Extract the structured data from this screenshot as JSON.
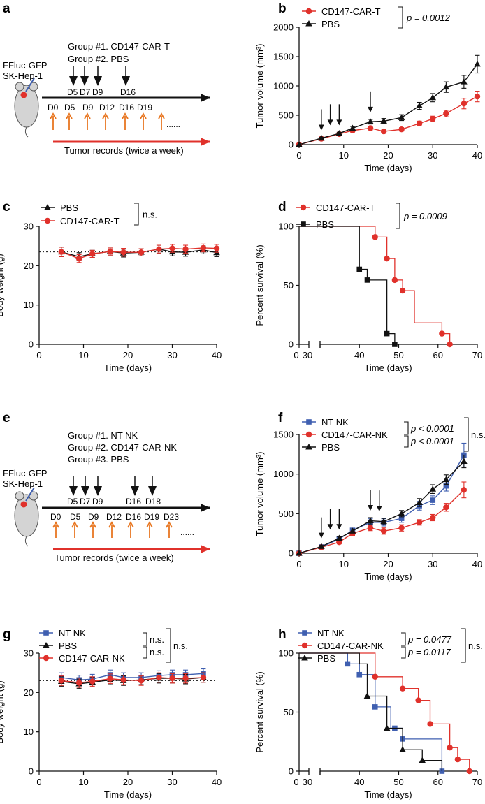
{
  "colors": {
    "red": "#e0312b",
    "black": "#111111",
    "blue": "#3f5fb0",
    "orange": "#e87722",
    "mouse": "#d4d4d4"
  },
  "panel_a": {
    "letter": "a",
    "group1": "Group #1. CD147-CAR-T",
    "group2": "Group #2. PBS",
    "cells_line1": "FFluc-GFP",
    "cells_line2": "SK-Hep-1",
    "injection_labels": [
      "D5",
      "D7",
      "D9",
      "D16"
    ],
    "day_labels": [
      "D0",
      "D5",
      "D9",
      "D12",
      "D16",
      "D19"
    ],
    "ellipsis": "......",
    "records_label": "Tumor records (twice a week)"
  },
  "panel_e": {
    "letter": "e",
    "group1": "Group #1. NT NK",
    "group2": "Group #2. CD147-CAR-NK",
    "group3": "Group #3. PBS",
    "cells_line1": "FFluc-GFP",
    "cells_line2": "SK-Hep-1",
    "injection_labels": [
      "D5",
      "D7",
      "D9",
      "D16",
      "D18"
    ],
    "day_labels": [
      "D0",
      "D5",
      "D9",
      "D12",
      "D16",
      "D19",
      "D23"
    ],
    "ellipsis": "......",
    "records_label": "Tumor records (twice a week)"
  },
  "chart_data": [
    {
      "id": "b",
      "type": "line",
      "panel_letter": "b",
      "xlabel": "Time (days)",
      "ylabel": "Tumor volume (mm³)",
      "xlim": [
        0,
        40
      ],
      "ylim": [
        0,
        2000
      ],
      "xticks": [
        0,
        10,
        20,
        30,
        40
      ],
      "yticks": [
        0,
        500,
        1000,
        1500,
        2000
      ],
      "series": [
        {
          "name": "CD147-CAR-T",
          "color": "#e0312b",
          "marker": "circle",
          "x": [
            0,
            5,
            9,
            12,
            16,
            19,
            23,
            27,
            30,
            33,
            37,
            40
          ],
          "y": [
            0,
            100,
            180,
            240,
            280,
            225,
            260,
            360,
            440,
            530,
            700,
            820
          ],
          "err": [
            0,
            15,
            20,
            25,
            30,
            25,
            30,
            40,
            45,
            55,
            90,
            90
          ]
        },
        {
          "name": "PBS",
          "color": "#111111",
          "marker": "triangle",
          "x": [
            0,
            5,
            9,
            12,
            16,
            19,
            23,
            27,
            30,
            33,
            37,
            40
          ],
          "y": [
            0,
            110,
            190,
            280,
            390,
            400,
            460,
            660,
            800,
            980,
            1070,
            1370
          ],
          "err": [
            0,
            15,
            20,
            30,
            40,
            45,
            50,
            60,
            70,
            90,
            110,
            150
          ]
        }
      ],
      "injection_days": [
        5,
        7,
        9,
        16
      ],
      "stat": {
        "text": "p = 0.0012"
      }
    },
    {
      "id": "c",
      "type": "line",
      "panel_letter": "c",
      "xlabel": "Time (days)",
      "ylabel": "Body weight (g)",
      "xlim": [
        0,
        40
      ],
      "ylim": [
        0,
        30
      ],
      "xticks": [
        0,
        10,
        20,
        30,
        40
      ],
      "yticks": [
        0,
        10,
        20,
        30
      ],
      "baseline": 23.5,
      "series": [
        {
          "name": "PBS",
          "color": "#111111",
          "marker": "triangle",
          "x": [
            5,
            9,
            12,
            16,
            19,
            23,
            27,
            30,
            33,
            37,
            40
          ],
          "y": [
            23.5,
            22.3,
            23.0,
            23.6,
            23.2,
            23.4,
            24.2,
            23.5,
            23.4,
            24.0,
            23.3
          ],
          "err": [
            1.2,
            1.0,
            0.9,
            0.9,
            1.0,
            0.9,
            1.0,
            1.0,
            1.0,
            1.0,
            1.0
          ]
        },
        {
          "name": "CD147-CAR-T",
          "color": "#e0312b",
          "marker": "circle",
          "x": [
            5,
            9,
            12,
            16,
            19,
            23,
            27,
            30,
            33,
            37,
            40
          ],
          "y": [
            23.5,
            21.8,
            23.0,
            23.6,
            23.4,
            23.4,
            24.2,
            24.4,
            24.2,
            24.5,
            24.4
          ],
          "err": [
            1.2,
            1.0,
            0.9,
            0.9,
            1.0,
            0.9,
            1.0,
            1.0,
            1.0,
            1.0,
            1.0
          ]
        }
      ],
      "stat": {
        "text": "n.s."
      }
    },
    {
      "id": "d",
      "type": "line",
      "panel_letter": "d",
      "survival": true,
      "xlabel": "Time (days)",
      "ylabel": "Percent survival (%)",
      "xlim": [
        0,
        70
      ],
      "ylim": [
        0,
        100
      ],
      "xticks": [
        0,
        30,
        40,
        50,
        60,
        70
      ],
      "yticks": [
        0,
        50,
        100
      ],
      "series": [
        {
          "name": "CD147-CAR-T",
          "color": "#e0312b",
          "marker": "circle",
          "steps": [
            [
              0,
              100
            ],
            [
              44,
              90.9
            ],
            [
              47,
              72.7
            ],
            [
              49,
              54.5
            ],
            [
              51,
              45.5
            ],
            [
              54,
              18.2
            ],
            [
              61,
              9.1
            ],
            [
              63,
              0
            ]
          ],
          "marks": [
            [
              44,
              90.9
            ],
            [
              47,
              72.7
            ],
            [
              49,
              54.5
            ],
            [
              51,
              45.5
            ],
            [
              61,
              9.1
            ],
            [
              63,
              0
            ]
          ]
        },
        {
          "name": "PBS",
          "color": "#111111",
          "marker": "square",
          "steps": [
            [
              0,
              100
            ],
            [
              40,
              63.6
            ],
            [
              42,
              54.5
            ],
            [
              47,
              9.1
            ],
            [
              49,
              0
            ]
          ],
          "marks": [
            [
              40,
              63.6
            ],
            [
              42,
              54.5
            ],
            [
              47,
              9.1
            ],
            [
              49,
              0
            ]
          ]
        }
      ],
      "stat": {
        "text": "p = 0.0009"
      }
    },
    {
      "id": "f",
      "type": "line",
      "panel_letter": "f",
      "xlabel": "Time (days)",
      "ylabel": "Tumor volume (mm³)",
      "xlim": [
        0,
        40
      ],
      "ylim": [
        0,
        1500
      ],
      "xticks": [
        0,
        10,
        20,
        30,
        40
      ],
      "yticks": [
        0,
        500,
        1000,
        1500
      ],
      "series": [
        {
          "name": "NT NK",
          "color": "#3f5fb0",
          "marker": "square",
          "x": [
            0,
            5,
            9,
            12,
            16,
            19,
            23,
            27,
            30,
            33,
            37
          ],
          "y": [
            0,
            80,
            180,
            290,
            390,
            390,
            440,
            600,
            670,
            850,
            1240
          ],
          "err": [
            0,
            15,
            20,
            25,
            45,
            45,
            50,
            55,
            55,
            65,
            150
          ]
        },
        {
          "name": "CD147-CAR-NK",
          "color": "#e0312b",
          "marker": "circle",
          "x": [
            0,
            5,
            9,
            12,
            16,
            19,
            23,
            27,
            30,
            33,
            37
          ],
          "y": [
            0,
            75,
            140,
            250,
            320,
            280,
            320,
            390,
            450,
            580,
            800
          ],
          "err": [
            0,
            15,
            20,
            25,
            35,
            40,
            40,
            35,
            40,
            50,
            100
          ]
        },
        {
          "name": "PBS",
          "color": "#111111",
          "marker": "triangle",
          "x": [
            0,
            5,
            9,
            12,
            16,
            19,
            23,
            27,
            30,
            33,
            37
          ],
          "y": [
            0,
            85,
            190,
            280,
            410,
            400,
            500,
            640,
            810,
            930,
            1160
          ],
          "err": [
            0,
            15,
            20,
            25,
            40,
            40,
            40,
            50,
            55,
            60,
            80
          ]
        }
      ],
      "injection_days": [
        5,
        7,
        9,
        16,
        18
      ],
      "stat": {
        "text1": "p < 0.0001",
        "text2": "p < 0.0001",
        "outer": "n.s."
      }
    },
    {
      "id": "g",
      "type": "line",
      "panel_letter": "g",
      "xlabel": "Time (days)",
      "ylabel": "Body weight (g)",
      "xlim": [
        0,
        40
      ],
      "ylim": [
        0,
        30
      ],
      "xticks": [
        0,
        10,
        20,
        30,
        40
      ],
      "yticks": [
        0,
        10,
        20,
        30
      ],
      "baseline": 23,
      "series": [
        {
          "name": "NT NK",
          "color": "#3f5fb0",
          "marker": "square",
          "x": [
            5,
            9,
            12,
            16,
            19,
            23,
            27,
            30,
            33,
            37
          ],
          "y": [
            23.8,
            23.2,
            23.4,
            24.5,
            23.8,
            23.8,
            24.3,
            24.5,
            24.5,
            24.8
          ],
          "err": [
            1.2,
            1.2,
            1.2,
            1.2,
            1.2,
            1.2,
            1.2,
            1.2,
            1.2,
            1.2
          ]
        },
        {
          "name": "PBS",
          "color": "#111111",
          "marker": "triangle",
          "x": [
            5,
            9,
            12,
            16,
            19,
            23,
            27,
            30,
            33,
            37
          ],
          "y": [
            22.8,
            22.2,
            22.6,
            23.2,
            23.0,
            23.2,
            23.6,
            23.6,
            23.4,
            23.8
          ],
          "err": [
            1.2,
            1.2,
            1.2,
            1.2,
            1.2,
            1.2,
            1.2,
            1.2,
            1.2,
            1.2
          ]
        },
        {
          "name": "CD147-CAR-NK",
          "color": "#e0312b",
          "marker": "circle",
          "x": [
            5,
            9,
            12,
            16,
            19,
            23,
            27,
            30,
            33,
            37
          ],
          "y": [
            23.0,
            22.5,
            22.8,
            23.5,
            23.2,
            23.0,
            23.8,
            23.6,
            23.6,
            23.8
          ],
          "err": [
            1.2,
            1.2,
            1.2,
            1.2,
            1.2,
            1.2,
            1.2,
            1.2,
            1.2,
            1.2
          ]
        }
      ],
      "stat": {
        "text1": "n.s.",
        "text2": "n.s.",
        "outer": "n.s."
      }
    },
    {
      "id": "h",
      "type": "line",
      "panel_letter": "h",
      "survival": true,
      "xlabel": "Time (days)",
      "ylabel": "Percent survival (%)",
      "xlim": [
        0,
        70
      ],
      "ylim": [
        0,
        100
      ],
      "xticks": [
        0,
        30,
        40,
        50,
        60,
        70
      ],
      "yticks": [
        0,
        50,
        100
      ],
      "series": [
        {
          "name": "NT NK",
          "color": "#3f5fb0",
          "marker": "square",
          "steps": [
            [
              0,
              100
            ],
            [
              37,
              90.9
            ],
            [
              40,
              81.8
            ],
            [
              44,
              54.5
            ],
            [
              48,
              36.4
            ],
            [
              51,
              27.3
            ],
            [
              61,
              0
            ]
          ],
          "marks": [
            [
              37,
              90.9
            ],
            [
              40,
              81.8
            ],
            [
              44,
              54.5
            ],
            [
              49,
              36.4
            ],
            [
              51,
              27.3
            ],
            [
              61,
              0
            ]
          ]
        },
        {
          "name": "CD147-CAR-NK",
          "color": "#e0312b",
          "marker": "circle",
          "steps": [
            [
              0,
              100
            ],
            [
              44,
              80
            ],
            [
              51,
              70
            ],
            [
              55,
              60
            ],
            [
              58,
              40
            ],
            [
              63,
              20
            ],
            [
              65,
              10
            ],
            [
              68,
              0
            ]
          ],
          "marks": [
            [
              44,
              80
            ],
            [
              51,
              70
            ],
            [
              55,
              60
            ],
            [
              58,
              40
            ],
            [
              63,
              20
            ],
            [
              65,
              10
            ],
            [
              68,
              0
            ]
          ]
        },
        {
          "name": "PBS",
          "color": "#111111",
          "marker": "triangle",
          "steps": [
            [
              0,
              100
            ],
            [
              40,
              90.9
            ],
            [
              42,
              63.6
            ],
            [
              47,
              36.4
            ],
            [
              51,
              18.2
            ],
            [
              56,
              9.1
            ],
            [
              61,
              0
            ]
          ],
          "marks": [
            [
              42,
              63.6
            ],
            [
              47,
              36.4
            ],
            [
              51,
              18.2
            ],
            [
              56,
              9.1
            ]
          ]
        }
      ],
      "stat": {
        "text1": "p = 0.0477",
        "text2": "p = 0.0117",
        "outer": "n.s."
      }
    }
  ]
}
